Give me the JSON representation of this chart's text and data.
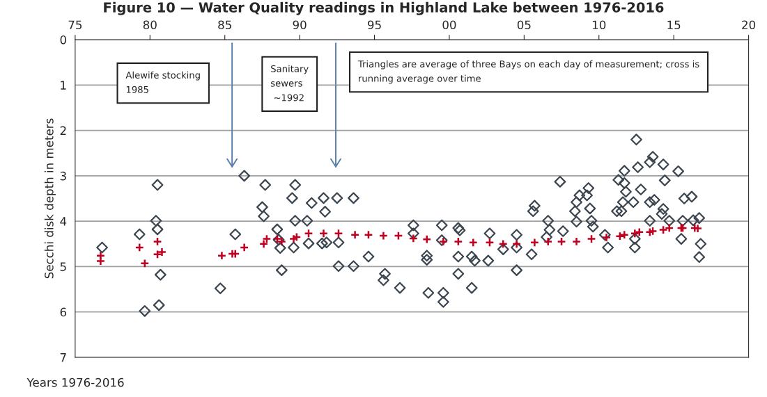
{
  "chart_data": {
    "type": "scatter",
    "title": "Figure 10 — Water Quality readings in Highland Lake between 1976-2016",
    "xlabel": "Years 1976-2016",
    "ylabel": "Secchi disk depth in meters",
    "xlim": [
      1975,
      2020
    ],
    "xticks": [
      {
        "value": 1975,
        "label": "75"
      },
      {
        "value": 1980,
        "label": "80"
      },
      {
        "value": 1985,
        "label": "85"
      },
      {
        "value": 1990,
        "label": "90"
      },
      {
        "value": 1995,
        "label": "95"
      },
      {
        "value": 2000,
        "label": "00"
      },
      {
        "value": 2005,
        "label": "05"
      },
      {
        "value": 2010,
        "label": "10"
      },
      {
        "value": 2015,
        "label": "15"
      },
      {
        "value": 2020,
        "label": "20"
      }
    ],
    "ylim": [
      7,
      0
    ],
    "yticks": [
      0,
      1,
      2,
      3,
      4,
      5,
      6,
      7
    ],
    "grid": "y",
    "annotations": [
      "Alewife stocking\n1985",
      "Sanitary\nsewers\n ~1992",
      "Triangles are average of three Bays on each day of measurement; cross is\nrunning average over time"
    ],
    "series": [
      {
        "color": "#3c4650",
        "marker": "diamond",
        "x": [
          1976.8,
          1979.3,
          1979.65,
          1980.5,
          1980.4,
          1980.5,
          1980.7,
          1980.6,
          1984.7,
          1985.7,
          1986.3,
          1987.7,
          1987.5,
          1987.6,
          1988.5,
          1988.6,
          1988.7,
          1988.8,
          1989.5,
          1989.7,
          1989.7,
          1989.6,
          1990.5,
          1990.6,
          1990.8,
          1991.6,
          1991.7,
          1991.5,
          1991.8,
          1992.5,
          1992.6,
          1992.6,
          1993.6,
          1993.6,
          1994.6,
          1995.7,
          1995.6,
          1996.7,
          1997.6,
          1997.6,
          1998.5,
          1998.5,
          1998.6,
          1999.5,
          1999.5,
          1999.6,
          1999.6,
          2000.6,
          2000.7,
          2000.6,
          2000.6,
          2001.5,
          2001.7,
          2001.5,
          2002.6,
          2002.7,
          2003.6,
          2004.5,
          2004.5,
          2004.5,
          2005.5,
          2005.7,
          2005.6,
          2006.6,
          2006.7,
          2006.5,
          2007.4,
          2007.6,
          2008.5,
          2008.7,
          2009.3,
          2009.2,
          2008.4,
          2008.5,
          2009.4,
          2009.5,
          2009.6,
          2010.6,
          2010.4,
          2011.7,
          2011.3,
          2011.7,
          2011.8,
          2011.6,
          2012.3,
          2011.5,
          2011.2,
          2012.5,
          2012.6,
          2012.8,
          2012.4,
          2012.4,
          2013.4,
          2013.6,
          2013.4,
          2013.7,
          2013.4,
          2014.3,
          2014.4,
          2014.3,
          2014.2,
          2014.7,
          2015.3,
          2015.7,
          2016.2,
          2015.6,
          2015.5,
          2016.7,
          2016.3,
          2016.8,
          2016.7
        ],
        "values": [
          4.58,
          4.29,
          5.98,
          3.2,
          3.99,
          4.18,
          5.18,
          5.85,
          5.48,
          4.29,
          3.0,
          3.2,
          3.69,
          3.89,
          4.18,
          4.41,
          4.59,
          5.08,
          3.49,
          3.2,
          3.99,
          4.58,
          3.99,
          4.49,
          3.6,
          3.49,
          3.79,
          4.49,
          4.47,
          3.49,
          4.47,
          4.99,
          4.99,
          3.49,
          4.78,
          5.16,
          5.3,
          5.47,
          4.09,
          4.27,
          4.76,
          4.85,
          5.58,
          4.09,
          4.42,
          5.58,
          5.78,
          4.15,
          4.2,
          4.78,
          5.16,
          4.78,
          4.87,
          5.47,
          4.87,
          4.27,
          4.62,
          4.3,
          4.58,
          5.08,
          4.73,
          3.66,
          3.78,
          3.99,
          4.19,
          4.35,
          3.13,
          4.22,
          3.58,
          3.43,
          3.27,
          3.43,
          3.78,
          4.01,
          3.72,
          3.99,
          4.12,
          4.58,
          4.3,
          2.89,
          3.09,
          3.16,
          3.35,
          3.58,
          3.58,
          3.78,
          3.78,
          2.2,
          2.81,
          3.3,
          4.39,
          4.58,
          2.7,
          2.58,
          3.58,
          3.53,
          3.99,
          2.75,
          3.1,
          3.73,
          3.84,
          3.99,
          2.9,
          3.5,
          3.46,
          3.99,
          4.39,
          3.93,
          3.98,
          4.5,
          4.79
        ]
      },
      {
        "color": "#c00020",
        "marker": "cross",
        "x": [
          1976.7,
          1976.7,
          1979.3,
          1979.65,
          1980.5,
          1980.5,
          1980.8,
          1984.8,
          1985.5,
          1985.7,
          1986.3,
          1987.6,
          1987.8,
          1988.5,
          1988.8,
          1989.6,
          1989.8,
          1990.6,
          1991.6,
          1992.6,
          1993.7,
          1994.6,
          1995.6,
          1996.6,
          1997.6,
          1998.5,
          1999.6,
          2000.6,
          2001.6,
          2002.7,
          2003.6,
          2004.5,
          2005.7,
          2006.6,
          2007.5,
          2008.5,
          2009.5,
          2010.5,
          2011.4,
          2011.7,
          2012.4,
          2012.7,
          2013.4,
          2013.6,
          2014.3,
          2014.7,
          2015.5,
          2015.6,
          2016.4,
          2016.6
        ],
        "values": [
          4.76,
          4.88,
          4.58,
          4.93,
          4.45,
          4.73,
          4.68,
          4.76,
          4.72,
          4.72,
          4.58,
          4.5,
          4.39,
          4.39,
          4.45,
          4.39,
          4.35,
          4.27,
          4.27,
          4.27,
          4.3,
          4.3,
          4.32,
          4.32,
          4.38,
          4.4,
          4.45,
          4.45,
          4.47,
          4.47,
          4.5,
          4.5,
          4.47,
          4.45,
          4.45,
          4.45,
          4.39,
          4.36,
          4.33,
          4.3,
          4.27,
          4.24,
          4.24,
          4.22,
          4.19,
          4.15,
          4.15,
          4.15,
          4.15,
          4.16
        ]
      }
    ]
  }
}
